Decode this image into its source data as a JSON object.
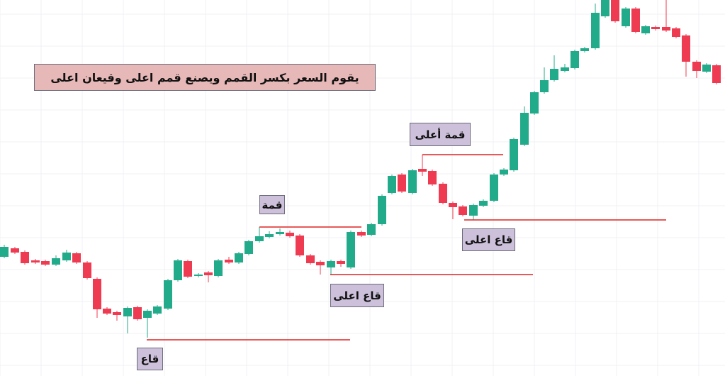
{
  "annotations": {
    "title": "يقوم السعر بكسر القمم ويصنع قمم اعلى وقيعان اعلى",
    "labels": [
      "قمة",
      "قمة أعلى",
      "قاع اعلى",
      "قاع اعلى",
      "قاع"
    ]
  }
}
